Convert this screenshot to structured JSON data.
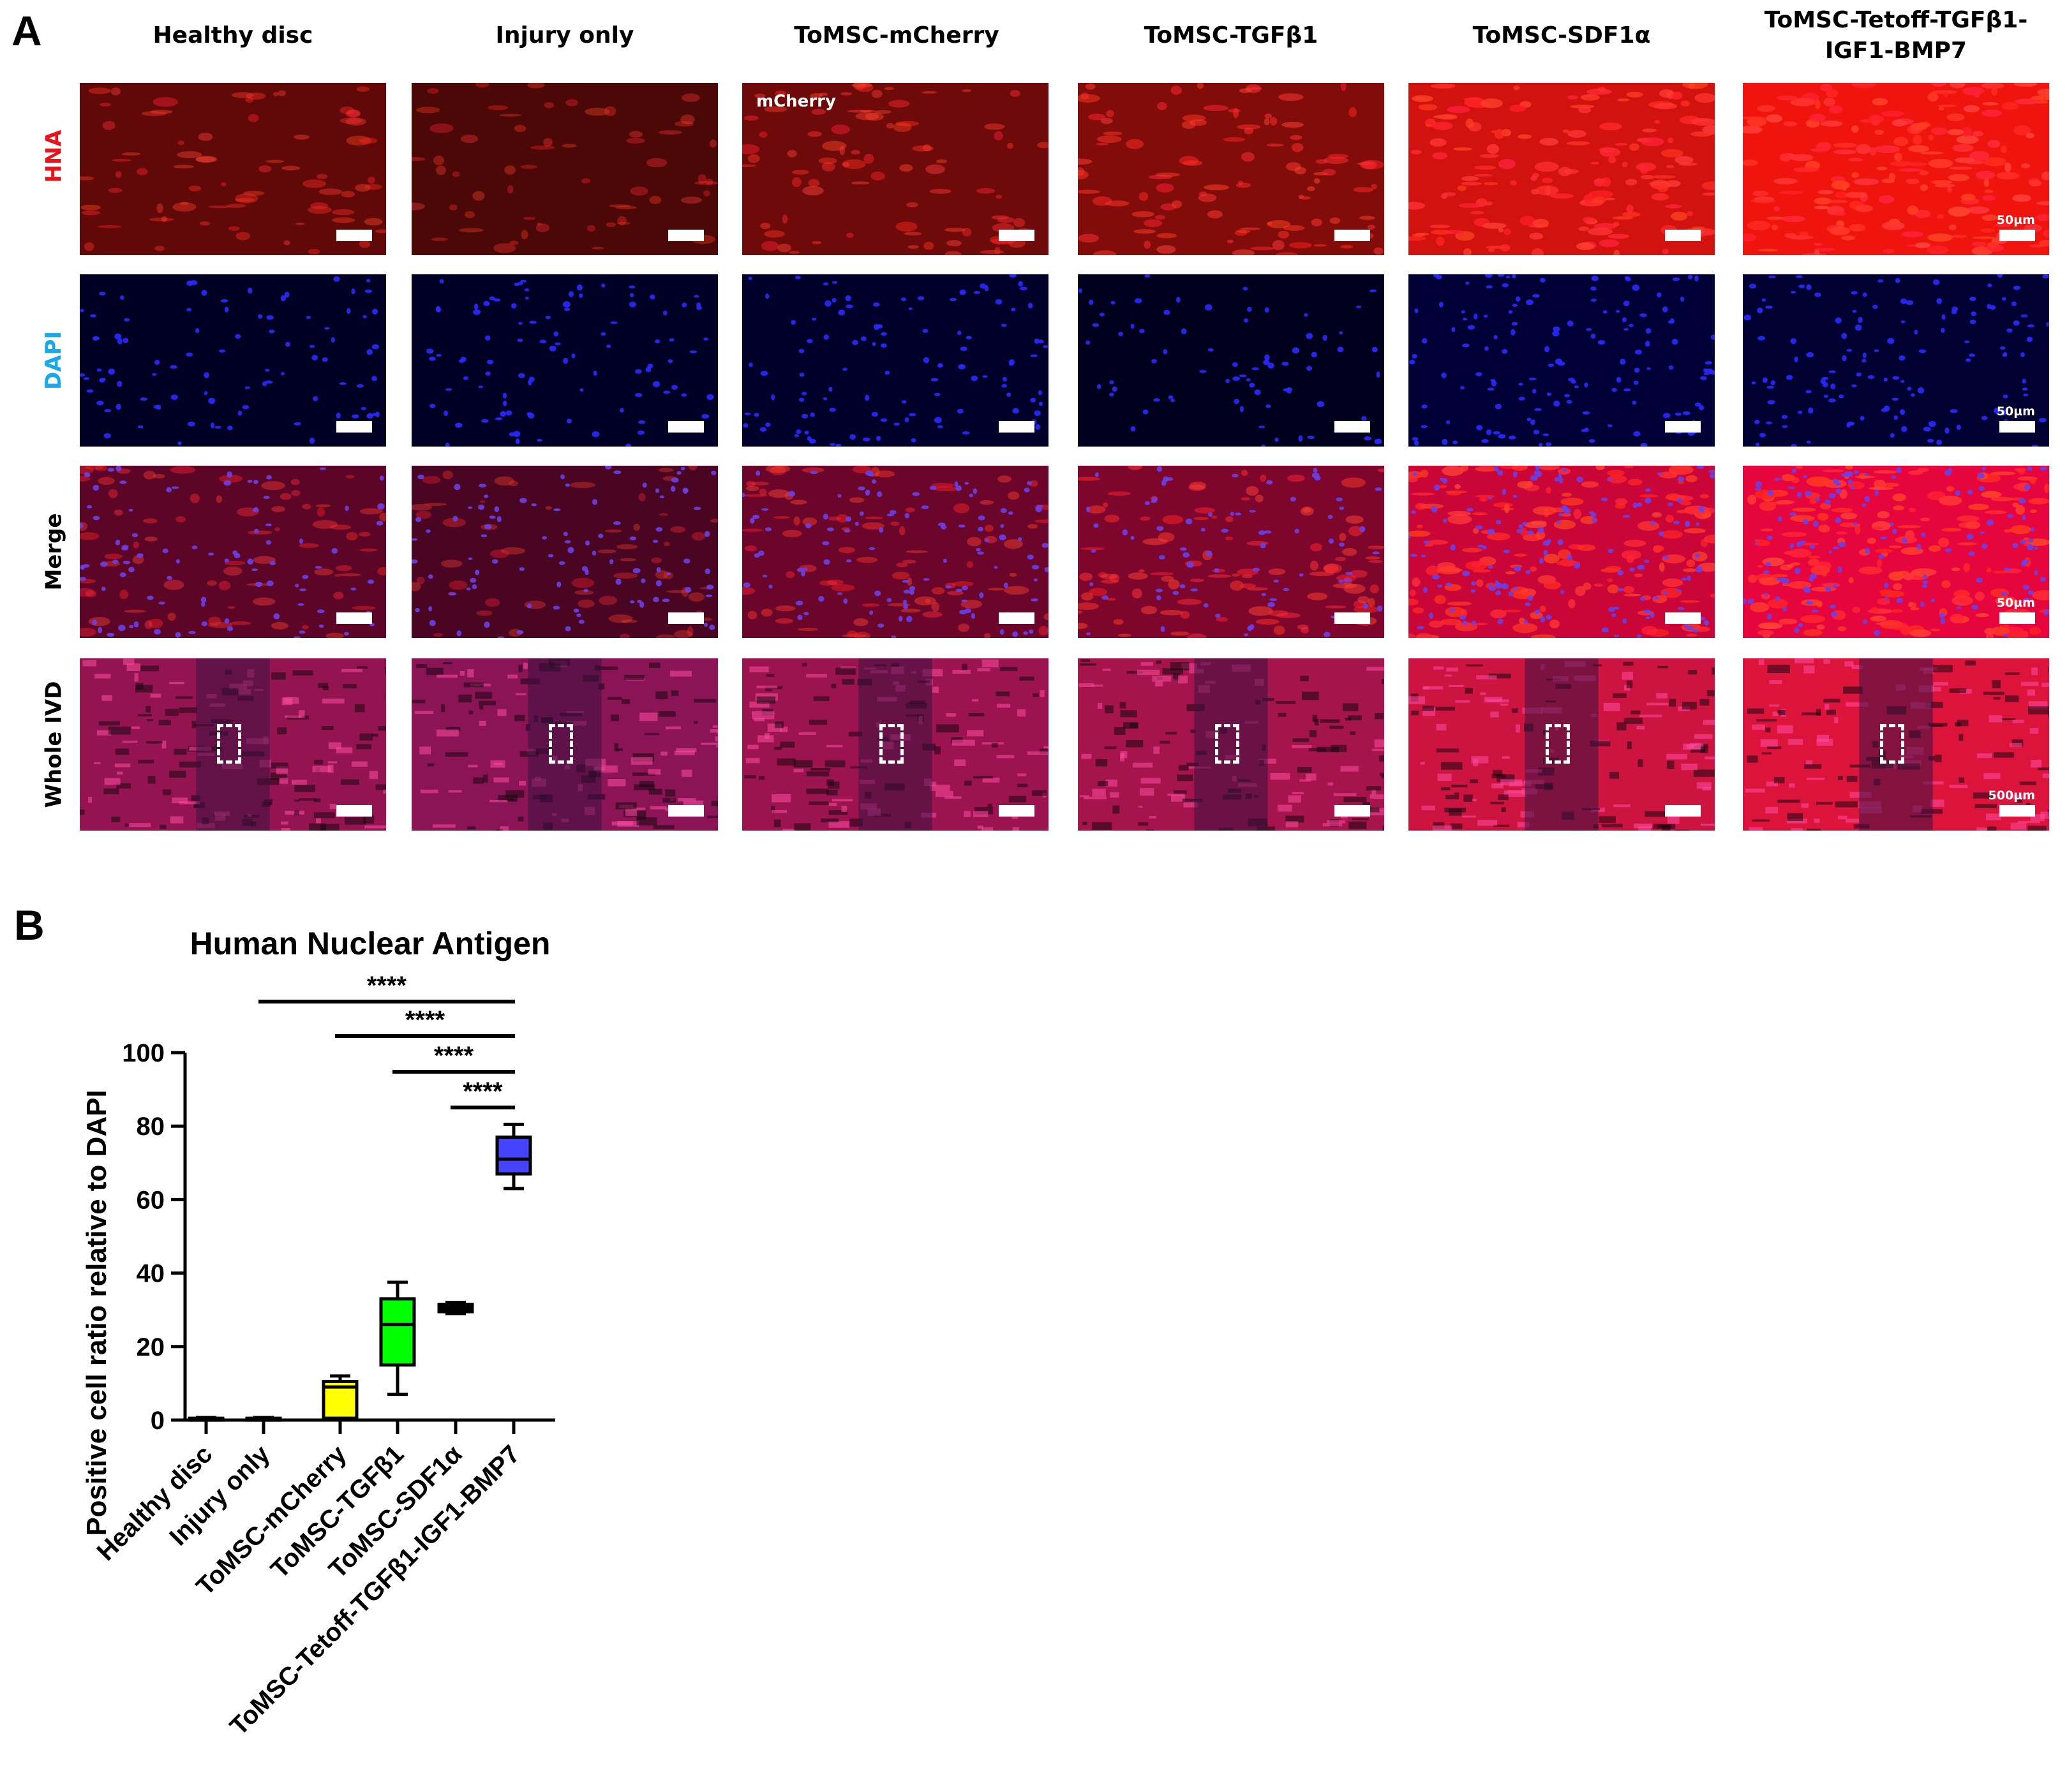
{
  "figure": {
    "panel_a_letter": "A",
    "panel_b_letter": "B",
    "columns": [
      {
        "label": "Healthy disc",
        "hna_level": 0.28,
        "dapi_density": 0.45
      },
      {
        "label": "Injury only",
        "hna_level": 0.18,
        "dapi_density": 0.5
      },
      {
        "label": "ToMSC-mCherry",
        "hna_level": 0.35,
        "dapi_density": 0.6
      },
      {
        "label": "ToMSC-TGFβ1",
        "hna_level": 0.45,
        "dapi_density": 0.3
      },
      {
        "label": "ToMSC-SDF1α",
        "hna_level": 0.85,
        "dapi_density": 0.9
      },
      {
        "label": "ToMSC-Tetoff-TGFβ1-IGF1-BMP7",
        "hna_level": 1.0,
        "dapi_density": 0.8
      }
    ],
    "rows": [
      {
        "label": "HNA",
        "color": "#e8141c",
        "kind": "hna"
      },
      {
        "label": "DAPI",
        "color": "#1aa8e8",
        "kind": "dapi"
      },
      {
        "label": "Merge",
        "color": "#000000",
        "kind": "merge"
      },
      {
        "label": "Whole IVD",
        "color": "#000000",
        "kind": "ivd"
      }
    ],
    "inner_label": "mCherry",
    "scale_labels": {
      "hna": "50µm",
      "dapi": "50µm",
      "merge": "50µm",
      "ivd": "500µm"
    }
  },
  "chart_data": {
    "type": "box",
    "title": "Human Nuclear Antigen",
    "ylabel": "Positive cell ratio relative to DAPI",
    "xlabel": "",
    "ylim": [
      0,
      100
    ],
    "yticks": [
      0,
      20,
      40,
      60,
      80,
      100
    ],
    "categories": [
      "Healthy disc",
      "Injury only",
      "ToMSC-mCherry",
      "ToMSC-TGFβ1",
      "ToMSC-SDF1α",
      "ToMSC-Tetoff-TGFβ1-IGF1-BMP7"
    ],
    "boxes": [
      {
        "min": 0,
        "q1": 0,
        "median": 0,
        "q3": 0.5,
        "max": 0.7,
        "color": "#ffffff"
      },
      {
        "min": 0,
        "q1": 0,
        "median": 0,
        "q3": 0.5,
        "max": 0.7,
        "color": "#ffffff"
      },
      {
        "min": 0,
        "q1": 0.5,
        "median": 9,
        "q3": 10.5,
        "max": 12,
        "color": "#ffff00"
      },
      {
        "min": 7,
        "q1": 15,
        "median": 26,
        "q3": 33,
        "max": 37.5,
        "color": "#00ff00"
      },
      {
        "min": 29,
        "q1": 29.5,
        "median": 30.5,
        "q3": 31.5,
        "max": 32,
        "color": "#000000"
      },
      {
        "min": 63,
        "q1": 67,
        "median": 71,
        "q3": 77,
        "max": 80.5,
        "color": "#4444ff"
      }
    ],
    "significance": [
      {
        "from": 1,
        "to": 5,
        "label": "****"
      },
      {
        "from": 2,
        "to": 5,
        "label": "****"
      },
      {
        "from": 3,
        "to": 5,
        "label": "****"
      },
      {
        "from": 4,
        "to": 5,
        "label": "****"
      }
    ]
  }
}
